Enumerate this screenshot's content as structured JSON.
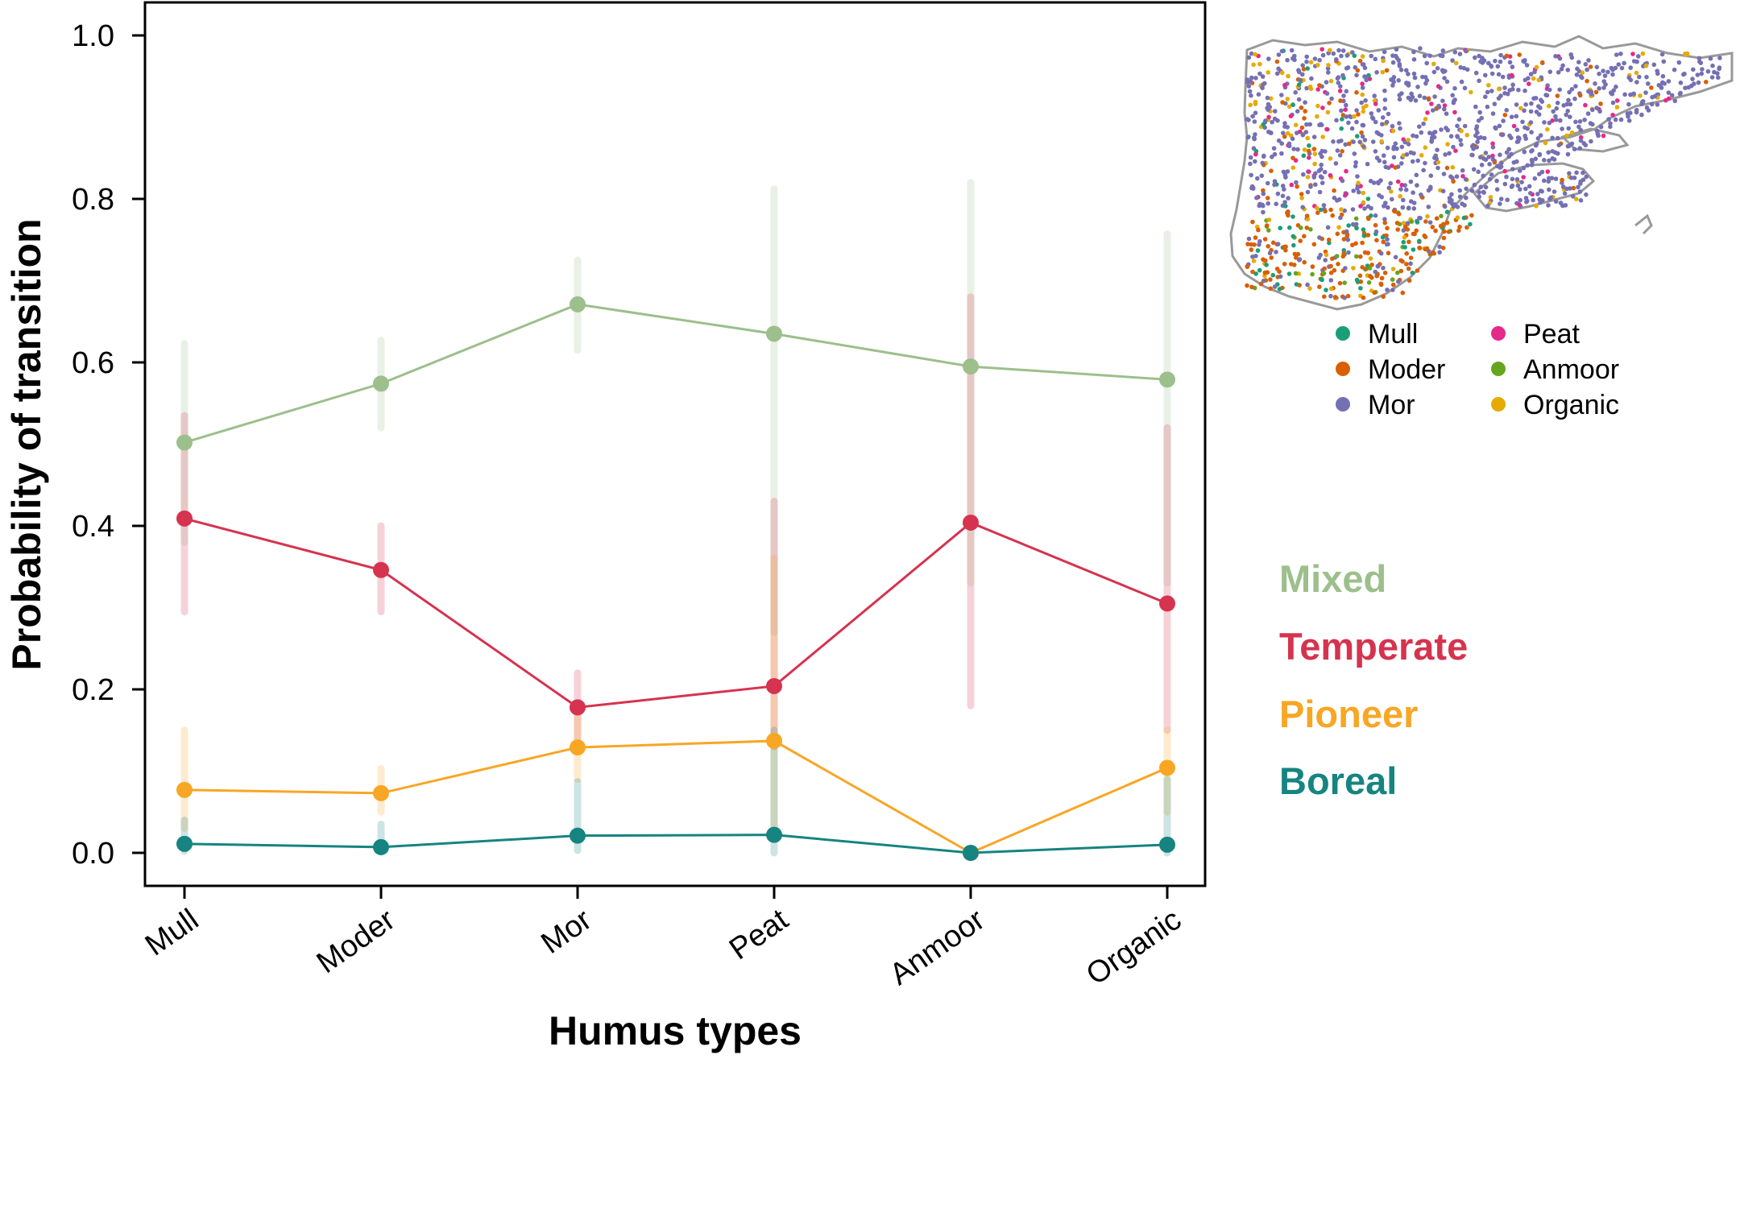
{
  "chart_data": {
    "type": "line",
    "title": "",
    "xlabel": "Humus types",
    "ylabel": "Probability of transition",
    "categories": [
      "Mull",
      "Moder",
      "Mor",
      "Peat",
      "Anmoor",
      "Organic"
    ],
    "ylim": [
      0,
      1
    ],
    "yticks": [
      "0.0",
      "0.2",
      "0.4",
      "0.6",
      "0.8",
      "1.0"
    ],
    "grid": false,
    "legend_position": "right",
    "series": [
      {
        "name": "Mixed",
        "color": "#9dbf8c",
        "values": [
          0.502,
          0.574,
          0.671,
          0.635,
          0.595,
          0.579
        ],
        "lower": [
          0.38,
          0.52,
          0.615,
          0.27,
          0.33,
          0.33
        ],
        "upper": [
          0.623,
          0.627,
          0.725,
          0.812,
          0.82,
          0.757
        ]
      },
      {
        "name": "Temperate",
        "color": "#d5334f",
        "values": [
          0.409,
          0.346,
          0.178,
          0.204,
          0.404,
          0.305
        ],
        "lower": [
          0.295,
          0.295,
          0.14,
          0.13,
          0.18,
          0.15
        ],
        "upper": [
          0.535,
          0.4,
          0.22,
          0.43,
          0.68,
          0.52
        ]
      },
      {
        "name": "Pioneer",
        "color": "#f8a624",
        "values": [
          0.077,
          0.073,
          0.129,
          0.137,
          0.0,
          0.104
        ],
        "lower": [
          0.03,
          0.05,
          0.09,
          0.02,
          0.0,
          0.05
        ],
        "upper": [
          0.15,
          0.103,
          0.17,
          0.36,
          0.0,
          0.15
        ]
      },
      {
        "name": "Boreal",
        "color": "#168480",
        "values": [
          0.011,
          0.007,
          0.021,
          0.022,
          0.0,
          0.01
        ],
        "lower": [
          0.002,
          0.001,
          0.003,
          0.0,
          0.0,
          0.0
        ],
        "upper": [
          0.04,
          0.035,
          0.087,
          0.15,
          0.0,
          0.09
        ]
      }
    ]
  },
  "map_legend": {
    "items": [
      {
        "label": "Mull",
        "color": "#1b9e77"
      },
      {
        "label": "Moder",
        "color": "#d95f02"
      },
      {
        "label": "Mor",
        "color": "#7570b3"
      },
      {
        "label": "Peat",
        "color": "#e7298a"
      },
      {
        "label": "Anmoor",
        "color": "#66a61e"
      },
      {
        "label": "Organic",
        "color": "#e6ab02"
      }
    ]
  }
}
